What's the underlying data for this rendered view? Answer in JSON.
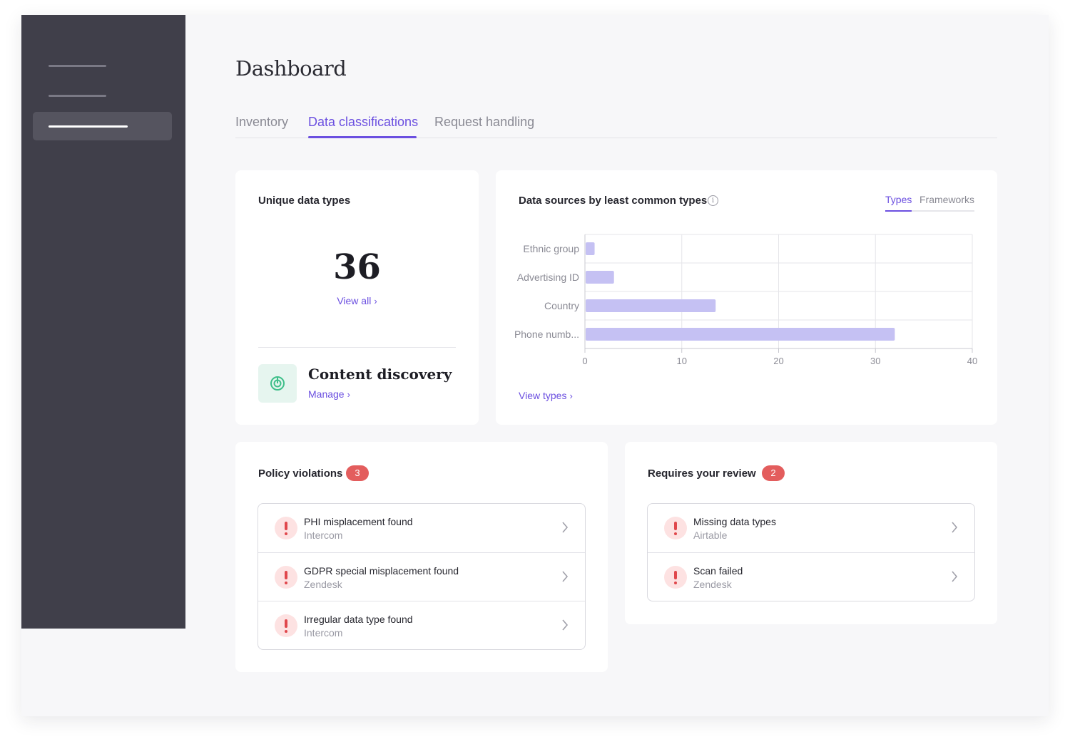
{
  "page": {
    "title": "Dashboard"
  },
  "tabs": [
    {
      "label": "Inventory",
      "active": false
    },
    {
      "label": "Data classifications",
      "active": true
    },
    {
      "label": "Request handling",
      "active": false
    }
  ],
  "unique_data_types": {
    "title": "Unique data types",
    "count": "36",
    "view_all": "View all",
    "content_discovery": {
      "title": "Content discovery",
      "manage": "Manage",
      "icon": "radar-icon"
    }
  },
  "data_sources_chart": {
    "title": "Data sources by least common types",
    "subtabs": [
      {
        "label": "Types",
        "active": true
      },
      {
        "label": "Frameworks",
        "active": false
      }
    ],
    "view_types": "View types"
  },
  "chart_data": {
    "type": "bar",
    "orientation": "horizontal",
    "categories": [
      "Ethnic group",
      "Advertising ID",
      "Country",
      "Phone numb..."
    ],
    "values": [
      1,
      3,
      13.5,
      32
    ],
    "xlim": [
      0,
      40
    ],
    "xticks": [
      "0",
      "10",
      "20",
      "30",
      "40"
    ],
    "grid": true,
    "bar_color": "#c5c1f3"
  },
  "policy_violations": {
    "title": "Policy violations",
    "count": "3",
    "items": [
      {
        "title": "PHI misplacement found",
        "source": "Intercom"
      },
      {
        "title": "GDPR special misplacement found",
        "source": "Zendesk"
      },
      {
        "title": "Irregular data type found",
        "source": "Intercom"
      }
    ]
  },
  "requires_review": {
    "title": "Requires your review",
    "count": "2",
    "items": [
      {
        "title": "Missing data types",
        "source": "Airtable"
      },
      {
        "title": "Scan failed",
        "source": "Zendesk"
      }
    ]
  },
  "colors": {
    "accent": "#6b4fe0",
    "badge": "#e35d5d",
    "sidebar": "#403f4a",
    "alert": "#e0474c"
  }
}
